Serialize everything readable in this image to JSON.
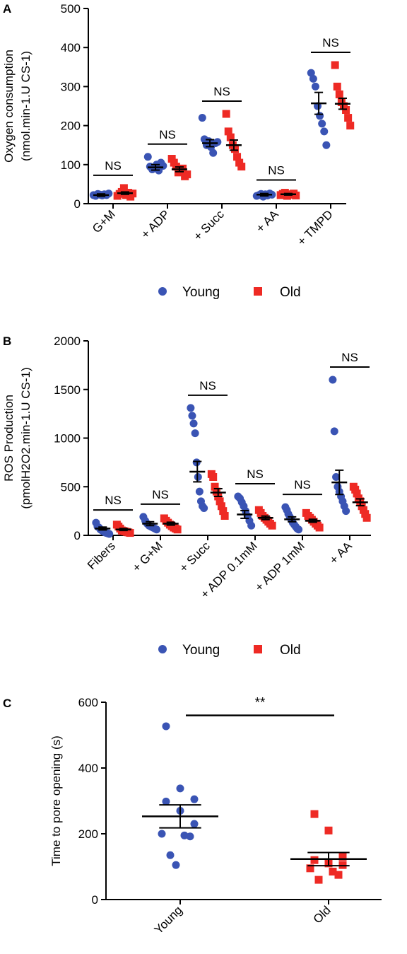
{
  "colors": {
    "young": "#3a54b4",
    "old": "#ee2a24",
    "axis": "#000000"
  },
  "chart_data": [
    {
      "panel": "A",
      "type": "scatter",
      "ylabel_line1": "Oxygen consumption",
      "ylabel_line2": "(nmol.min-1.U CS-1)",
      "ylim": [
        0,
        500
      ],
      "yticks": [
        0,
        100,
        200,
        300,
        400,
        500
      ],
      "categories": [
        "G+M",
        "+ ADP",
        "+ Succ",
        "+ AA",
        "+ TMPD"
      ],
      "annotations": [
        "NS",
        "NS",
        "NS",
        "NS",
        "NS"
      ],
      "legend": [
        "Young",
        "Old"
      ],
      "series": [
        {
          "name": "Young",
          "points": [
            [
              22,
              20,
              25,
              23,
              21,
              24,
              22,
              26
            ],
            [
              120,
              95,
              88,
              92,
              100,
              85,
              105,
              97
            ],
            [
              220,
              165,
              150,
              160,
              145,
              130,
              155,
              158
            ],
            [
              20,
              22,
              25,
              18,
              24,
              21,
              26,
              23
            ],
            [
              335,
              320,
              300,
              250,
              225,
              205,
              185,
              150
            ]
          ],
          "mean": [
            22,
            93,
            155,
            23,
            257
          ],
          "sem": [
            3,
            7,
            9,
            3,
            28
          ]
        },
        {
          "name": "Old",
          "points": [
            [
              20,
              25,
              30,
              40,
              22,
              28,
              18,
              26
            ],
            [
              115,
              105,
              95,
              80,
              85,
              90,
              70,
              75
            ],
            [
              230,
              185,
              170,
              150,
              140,
              120,
              105,
              95
            ],
            [
              22,
              25,
              28,
              20,
              24,
              23,
              26,
              21
            ],
            [
              355,
              300,
              280,
              260,
              250,
              240,
              220,
              200
            ]
          ],
          "mean": [
            27,
            88,
            150,
            24,
            256
          ],
          "sem": [
            3,
            6,
            13,
            2,
            14
          ]
        }
      ]
    },
    {
      "panel": "B",
      "type": "scatter",
      "ylabel_line1": "ROS Production",
      "ylabel_line2": "(pmolH2O2.min-1.U CS-1)",
      "ylim": [
        0,
        2000
      ],
      "yticks": [
        0,
        500,
        1000,
        1500,
        2000
      ],
      "categories": [
        "Fibers",
        "+ G+M",
        "+ Succ",
        "+ ADP 0.1mM",
        "+ ADP 1mM",
        "+ AA"
      ],
      "annotations": [
        "NS",
        "NS",
        "NS",
        "NS",
        "NS",
        "NS"
      ],
      "legend": [
        "Young",
        "Old"
      ],
      "series": [
        {
          "name": "Young",
          "points": [
            [
              130,
              90,
              80,
              60,
              50,
              40,
              30,
              25,
              20,
              15
            ],
            [
              190,
              150,
              120,
              100,
              90,
              80,
              70,
              60
            ],
            [
              1310,
              1230,
              1150,
              1050,
              750,
              600,
              450,
              350,
              300,
              280
            ],
            [
              400,
              380,
              340,
              300,
              250,
              200,
              150,
              100
            ],
            [
              290,
              260,
              220,
              190,
              160,
              130,
              110,
              90,
              70,
              60
            ],
            [
              1600,
              1070,
              600,
              500,
              450,
              400,
              350,
              300,
              250
            ]
          ],
          "mean": [
            70,
            120,
            655,
            215,
            165,
            545
          ],
          "sem": [
            15,
            20,
            105,
            40,
            25,
            125
          ]
        },
        {
          "name": "Old",
          "points": [
            [
              110,
              90,
              70,
              50,
              45,
              40,
              35,
              30,
              25
            ],
            [
              175,
              150,
              130,
              110,
              95,
              80,
              70,
              60
            ],
            [
              630,
              600,
              500,
              450,
              400,
              350,
              300,
              250,
              200
            ],
            [
              260,
              230,
              200,
              180,
              160,
              140,
              120,
              100
            ],
            [
              230,
              200,
              180,
              160,
              140,
              120,
              100,
              80
            ],
            [
              500,
              470,
              430,
              380,
              350,
              300,
              260,
              220,
              180
            ]
          ],
          "mean": [
            60,
            120,
            440,
            180,
            150,
            340
          ],
          "sem": [
            10,
            15,
            40,
            18,
            15,
            35
          ]
        }
      ]
    },
    {
      "panel": "C",
      "type": "scatter",
      "ylabel": "Time to pore opening (s)",
      "ylim": [
        0,
        600
      ],
      "yticks": [
        0,
        200,
        400,
        600
      ],
      "categories": [
        "Young",
        "Old"
      ],
      "significance": "**",
      "series": [
        {
          "name": "Young",
          "points": [
            527,
            338,
            305,
            298,
            270,
            230,
            200,
            195,
            192,
            135,
            105
          ],
          "mean": 253,
          "sem": 35
        },
        {
          "name": "Old",
          "points": [
            260,
            210,
            130,
            120,
            110,
            105,
            95,
            85,
            75,
            60
          ],
          "mean": 123,
          "sem": 20
        }
      ]
    }
  ]
}
